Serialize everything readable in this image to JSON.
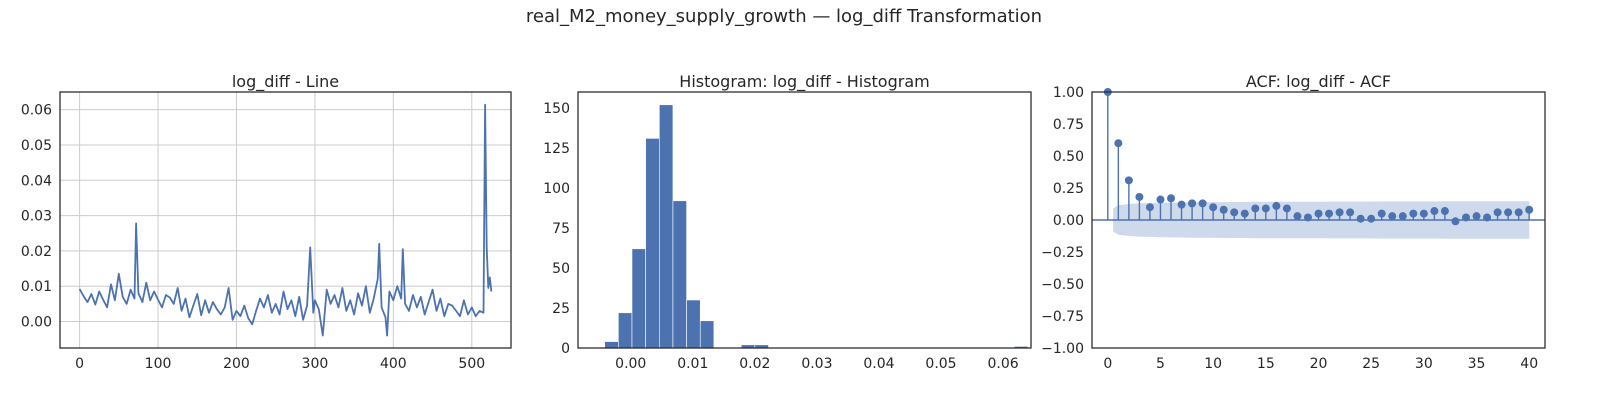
{
  "figure": {
    "suptitle": "real_M2_money_supply_growth — log_diff Transformation",
    "colors": {
      "series": "#4c72b0",
      "grid": "#cccccc",
      "spine": "#262626",
      "band": "#c6d3e8"
    }
  },
  "chart_data": [
    {
      "type": "line",
      "title": "log_diff - Line",
      "xlabel": "",
      "ylabel": "",
      "xlim": [
        -25,
        550
      ],
      "ylim": [
        -0.0075,
        0.065
      ],
      "xticks": [
        0,
        100,
        200,
        300,
        400,
        500
      ],
      "xtick_labels": [
        "0",
        "100",
        "200",
        "300",
        "400",
        "500"
      ],
      "yticks": [
        0.0,
        0.01,
        0.02,
        0.03,
        0.04,
        0.05,
        0.06
      ],
      "ytick_labels": [
        "0.00",
        "0.01",
        "0.02",
        "0.03",
        "0.04",
        "0.05",
        "0.06"
      ],
      "grid": true,
      "x": [
        0,
        5,
        10,
        15,
        20,
        25,
        30,
        35,
        40,
        45,
        50,
        55,
        60,
        65,
        70,
        72,
        75,
        80,
        85,
        90,
        95,
        100,
        105,
        110,
        115,
        120,
        125,
        130,
        135,
        140,
        145,
        150,
        155,
        160,
        165,
        170,
        175,
        180,
        185,
        190,
        195,
        200,
        205,
        210,
        215,
        220,
        225,
        230,
        235,
        240,
        245,
        250,
        255,
        260,
        265,
        270,
        275,
        280,
        285,
        290,
        294,
        298,
        300,
        305,
        310,
        315,
        320,
        325,
        330,
        335,
        340,
        345,
        350,
        355,
        360,
        365,
        370,
        375,
        380,
        382,
        385,
        390,
        392,
        395,
        400,
        405,
        410,
        412,
        415,
        420,
        425,
        430,
        435,
        440,
        445,
        450,
        455,
        460,
        465,
        470,
        475,
        480,
        485,
        490,
        495,
        500,
        505,
        510,
        515,
        517,
        519,
        521,
        523,
        525
      ],
      "values": [
        0.0092,
        0.0072,
        0.0055,
        0.0078,
        0.0048,
        0.0085,
        0.0062,
        0.004,
        0.0105,
        0.006,
        0.0135,
        0.007,
        0.005,
        0.009,
        0.0065,
        0.0278,
        0.008,
        0.0055,
        0.011,
        0.006,
        0.0085,
        0.0062,
        0.004,
        0.0075,
        0.0068,
        0.005,
        0.0095,
        0.003,
        0.0065,
        0.0012,
        0.0045,
        0.0078,
        0.0018,
        0.006,
        0.0025,
        0.0055,
        0.0035,
        0.002,
        0.004,
        0.0095,
        0.0005,
        0.003,
        0.0015,
        0.0045,
        0.001,
        -0.0008,
        0.003,
        0.0065,
        0.004,
        0.0075,
        0.0025,
        0.005,
        0.002,
        0.0085,
        0.0035,
        0.006,
        0.0015,
        0.007,
        0.0005,
        0.0045,
        0.021,
        0.0025,
        0.006,
        0.0035,
        -0.004,
        0.009,
        0.005,
        0.0075,
        0.004,
        0.0095,
        0.003,
        0.006,
        0.002,
        0.008,
        0.0045,
        0.01,
        0.0025,
        0.0065,
        0.012,
        0.022,
        0.004,
        0.0012,
        -0.004,
        0.0085,
        0.006,
        0.01,
        0.0065,
        0.0205,
        0.005,
        0.003,
        0.0075,
        0.004,
        0.007,
        0.002,
        0.0055,
        0.009,
        0.003,
        0.0065,
        0.0015,
        0.005,
        0.0045,
        0.003,
        0.0015,
        0.006,
        0.002,
        0.004,
        0.0015,
        0.003,
        0.0025,
        0.0614,
        0.021,
        0.0095,
        0.0125,
        0.0085
      ]
    },
    {
      "type": "bar",
      "title": "Histogram: log_diff - Histogram",
      "xlabel": "",
      "ylabel": "",
      "xlim": [
        -0.0085,
        0.0645
      ],
      "ylim": [
        0,
        160
      ],
      "xticks": [
        0.0,
        0.01,
        0.02,
        0.03,
        0.04,
        0.05,
        0.06
      ],
      "xtick_labels": [
        "0.00",
        "0.01",
        "0.02",
        "0.03",
        "0.04",
        "0.05",
        "0.06"
      ],
      "yticks": [
        0,
        25,
        50,
        75,
        100,
        125,
        150
      ],
      "ytick_labels": [
        "0",
        "25",
        "50",
        "75",
        "100",
        "125",
        "150"
      ],
      "grid": false,
      "bin_start": -0.0042,
      "bin_width": 0.0022,
      "values": [
        4,
        22,
        62,
        131,
        152,
        92,
        30,
        17,
        0,
        0,
        2,
        2,
        0,
        0,
        0,
        0,
        0,
        0,
        0,
        0,
        0,
        0,
        0,
        0,
        0,
        0,
        0,
        0,
        0,
        0,
        1
      ]
    },
    {
      "type": "scatter",
      "title": "ACF: log_diff - ACF",
      "xlabel": "",
      "ylabel": "",
      "xlim": [
        -1.5,
        41.5
      ],
      "ylim": [
        -1.0,
        1.0
      ],
      "xticks": [
        0,
        5,
        10,
        15,
        20,
        25,
        30,
        35,
        40
      ],
      "xtick_labels": [
        "0",
        "5",
        "10",
        "15",
        "20",
        "25",
        "30",
        "35",
        "40"
      ],
      "yticks": [
        -1.0,
        -0.75,
        -0.5,
        -0.25,
        0.0,
        0.25,
        0.5,
        0.75,
        1.0
      ],
      "ytick_labels": [
        "−1.00",
        "−0.75",
        "−0.50",
        "−0.25",
        "0.00",
        "0.25",
        "0.50",
        "0.75",
        "1.00"
      ],
      "grid": false,
      "lags": [
        0,
        1,
        2,
        3,
        4,
        5,
        6,
        7,
        8,
        9,
        10,
        11,
        12,
        13,
        14,
        15,
        16,
        17,
        18,
        19,
        20,
        21,
        22,
        23,
        24,
        25,
        26,
        27,
        28,
        29,
        30,
        31,
        32,
        33,
        34,
        35,
        36,
        37,
        38,
        39,
        40
      ],
      "values": [
        1.0,
        0.6,
        0.31,
        0.18,
        0.1,
        0.16,
        0.17,
        0.12,
        0.13,
        0.13,
        0.1,
        0.08,
        0.06,
        0.05,
        0.09,
        0.09,
        0.11,
        0.09,
        0.03,
        0.02,
        0.05,
        0.05,
        0.06,
        0.06,
        0.01,
        0.01,
        0.05,
        0.03,
        0.03,
        0.05,
        0.05,
        0.07,
        0.07,
        -0.01,
        0.02,
        0.03,
        0.02,
        0.06,
        0.06,
        0.06,
        0.08
      ],
      "confidence_band": [
        0.09,
        0.115,
        0.125,
        0.13,
        0.132,
        0.134,
        0.136,
        0.137,
        0.138,
        0.139,
        0.14,
        0.14,
        0.141,
        0.141,
        0.142,
        0.142,
        0.142,
        0.143,
        0.143,
        0.143,
        0.143,
        0.144,
        0.144,
        0.144,
        0.144,
        0.144,
        0.145,
        0.145,
        0.145,
        0.145,
        0.145,
        0.145,
        0.146,
        0.146,
        0.146,
        0.146,
        0.146,
        0.146,
        0.146,
        0.146,
        0.147
      ]
    }
  ]
}
